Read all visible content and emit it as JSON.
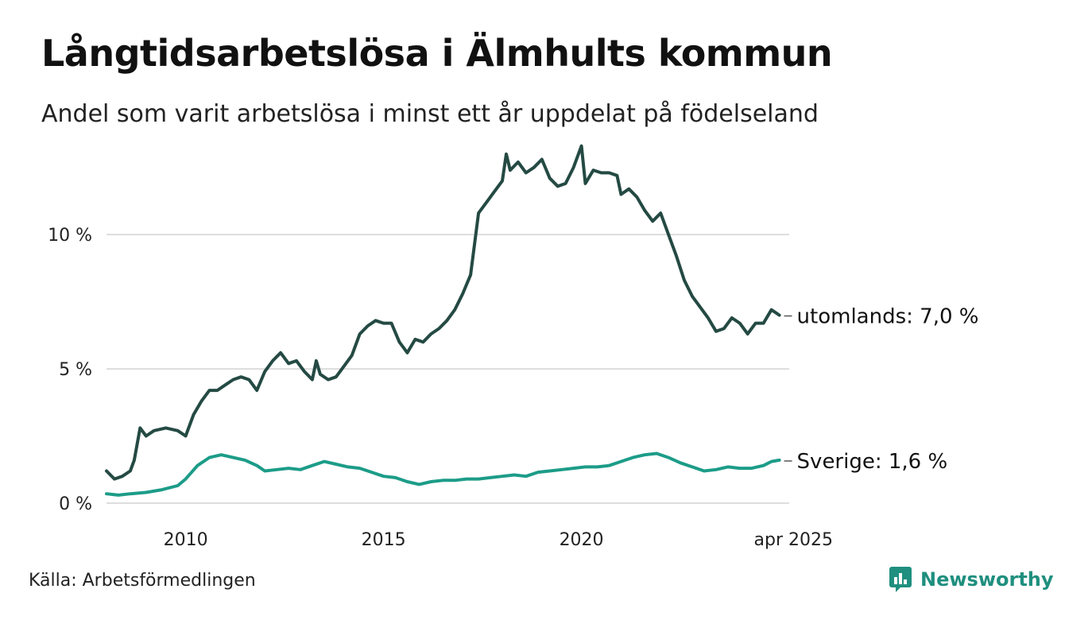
{
  "title": "Långtidsarbetslösa i Älmhults kommun",
  "subtitle": "Andel som varit arbetslösa i minst ett år uppdelat på födelseland",
  "source": "Källa: Arbetsförmedlingen",
  "brand": "Newsworthy",
  "chart_data": {
    "type": "line",
    "x_ticks": [
      "2010",
      "2015",
      "2020",
      "apr 2025"
    ],
    "y_ticks": [
      "0 %",
      "5 %",
      "10 %"
    ],
    "xlim": [
      2008.0,
      2025.25
    ],
    "ylim": [
      0,
      14
    ],
    "grid": true,
    "series": [
      {
        "name": "utomlands",
        "end_label": "utomlands: 7,0 %",
        "color": "#244a43",
        "points": [
          [
            2008.0,
            1.2
          ],
          [
            2008.2,
            0.9
          ],
          [
            2008.4,
            1.0
          ],
          [
            2008.6,
            1.2
          ],
          [
            2008.7,
            1.6
          ],
          [
            2008.85,
            2.8
          ],
          [
            2009.0,
            2.5
          ],
          [
            2009.2,
            2.7
          ],
          [
            2009.5,
            2.8
          ],
          [
            2009.8,
            2.7
          ],
          [
            2010.0,
            2.5
          ],
          [
            2010.2,
            3.3
          ],
          [
            2010.4,
            3.8
          ],
          [
            2010.6,
            4.2
          ],
          [
            2010.8,
            4.2
          ],
          [
            2011.0,
            4.4
          ],
          [
            2011.2,
            4.6
          ],
          [
            2011.4,
            4.7
          ],
          [
            2011.6,
            4.6
          ],
          [
            2011.8,
            4.2
          ],
          [
            2012.0,
            4.9
          ],
          [
            2012.2,
            5.3
          ],
          [
            2012.4,
            5.6
          ],
          [
            2012.6,
            5.2
          ],
          [
            2012.8,
            5.3
          ],
          [
            2013.0,
            4.9
          ],
          [
            2013.2,
            4.6
          ],
          [
            2013.3,
            5.3
          ],
          [
            2013.4,
            4.8
          ],
          [
            2013.6,
            4.6
          ],
          [
            2013.8,
            4.7
          ],
          [
            2014.0,
            5.1
          ],
          [
            2014.2,
            5.5
          ],
          [
            2014.4,
            6.3
          ],
          [
            2014.6,
            6.6
          ],
          [
            2014.8,
            6.8
          ],
          [
            2015.0,
            6.7
          ],
          [
            2015.2,
            6.7
          ],
          [
            2015.4,
            6.0
          ],
          [
            2015.6,
            5.6
          ],
          [
            2015.8,
            6.1
          ],
          [
            2016.0,
            6.0
          ],
          [
            2016.2,
            6.3
          ],
          [
            2016.4,
            6.5
          ],
          [
            2016.6,
            6.8
          ],
          [
            2016.8,
            7.2
          ],
          [
            2017.0,
            7.8
          ],
          [
            2017.2,
            8.5
          ],
          [
            2017.4,
            10.8
          ],
          [
            2017.6,
            11.2
          ],
          [
            2017.8,
            11.6
          ],
          [
            2018.0,
            12.0
          ],
          [
            2018.1,
            13.0
          ],
          [
            2018.2,
            12.4
          ],
          [
            2018.4,
            12.7
          ],
          [
            2018.6,
            12.3
          ],
          [
            2018.8,
            12.5
          ],
          [
            2019.0,
            12.8
          ],
          [
            2019.2,
            12.1
          ],
          [
            2019.4,
            11.8
          ],
          [
            2019.6,
            11.9
          ],
          [
            2019.8,
            12.5
          ],
          [
            2020.0,
            13.3
          ],
          [
            2020.1,
            11.9
          ],
          [
            2020.3,
            12.4
          ],
          [
            2020.5,
            12.3
          ],
          [
            2020.7,
            12.3
          ],
          [
            2020.9,
            12.2
          ],
          [
            2021.0,
            11.5
          ],
          [
            2021.2,
            11.7
          ],
          [
            2021.4,
            11.4
          ],
          [
            2021.6,
            10.9
          ],
          [
            2021.8,
            10.5
          ],
          [
            2022.0,
            10.8
          ],
          [
            2022.2,
            10.0
          ],
          [
            2022.4,
            9.2
          ],
          [
            2022.6,
            8.3
          ],
          [
            2022.8,
            7.7
          ],
          [
            2023.0,
            7.3
          ],
          [
            2023.2,
            6.9
          ],
          [
            2023.4,
            6.4
          ],
          [
            2023.6,
            6.5
          ],
          [
            2023.8,
            6.9
          ],
          [
            2024.0,
            6.7
          ],
          [
            2024.2,
            6.3
          ],
          [
            2024.4,
            6.7
          ],
          [
            2024.6,
            6.7
          ],
          [
            2024.8,
            7.2
          ],
          [
            2025.0,
            7.0
          ]
        ]
      },
      {
        "name": "Sverige",
        "end_label": "Sverige: 1,6 %",
        "color": "#1c9c88",
        "points": [
          [
            2008.0,
            0.35
          ],
          [
            2008.3,
            0.3
          ],
          [
            2008.6,
            0.35
          ],
          [
            2009.0,
            0.4
          ],
          [
            2009.4,
            0.5
          ],
          [
            2009.8,
            0.65
          ],
          [
            2010.0,
            0.9
          ],
          [
            2010.3,
            1.4
          ],
          [
            2010.6,
            1.7
          ],
          [
            2010.9,
            1.8
          ],
          [
            2011.2,
            1.7
          ],
          [
            2011.5,
            1.6
          ],
          [
            2011.8,
            1.4
          ],
          [
            2012.0,
            1.2
          ],
          [
            2012.3,
            1.25
          ],
          [
            2012.6,
            1.3
          ],
          [
            2012.9,
            1.25
          ],
          [
            2013.2,
            1.4
          ],
          [
            2013.5,
            1.55
          ],
          [
            2013.8,
            1.45
          ],
          [
            2014.1,
            1.35
          ],
          [
            2014.4,
            1.3
          ],
          [
            2014.7,
            1.15
          ],
          [
            2015.0,
            1.0
          ],
          [
            2015.3,
            0.95
          ],
          [
            2015.6,
            0.8
          ],
          [
            2015.9,
            0.7
          ],
          [
            2016.2,
            0.8
          ],
          [
            2016.5,
            0.85
          ],
          [
            2016.8,
            0.85
          ],
          [
            2017.1,
            0.9
          ],
          [
            2017.4,
            0.9
          ],
          [
            2017.7,
            0.95
          ],
          [
            2018.0,
            1.0
          ],
          [
            2018.3,
            1.05
          ],
          [
            2018.6,
            1.0
          ],
          [
            2018.9,
            1.15
          ],
          [
            2019.2,
            1.2
          ],
          [
            2019.5,
            1.25
          ],
          [
            2019.8,
            1.3
          ],
          [
            2020.1,
            1.35
          ],
          [
            2020.4,
            1.35
          ],
          [
            2020.7,
            1.4
          ],
          [
            2021.0,
            1.55
          ],
          [
            2021.3,
            1.7
          ],
          [
            2021.6,
            1.8
          ],
          [
            2021.9,
            1.85
          ],
          [
            2022.2,
            1.7
          ],
          [
            2022.5,
            1.5
          ],
          [
            2022.8,
            1.35
          ],
          [
            2023.1,
            1.2
          ],
          [
            2023.4,
            1.25
          ],
          [
            2023.7,
            1.35
          ],
          [
            2024.0,
            1.3
          ],
          [
            2024.3,
            1.3
          ],
          [
            2024.6,
            1.4
          ],
          [
            2024.8,
            1.55
          ],
          [
            2025.0,
            1.6
          ]
        ]
      }
    ]
  }
}
